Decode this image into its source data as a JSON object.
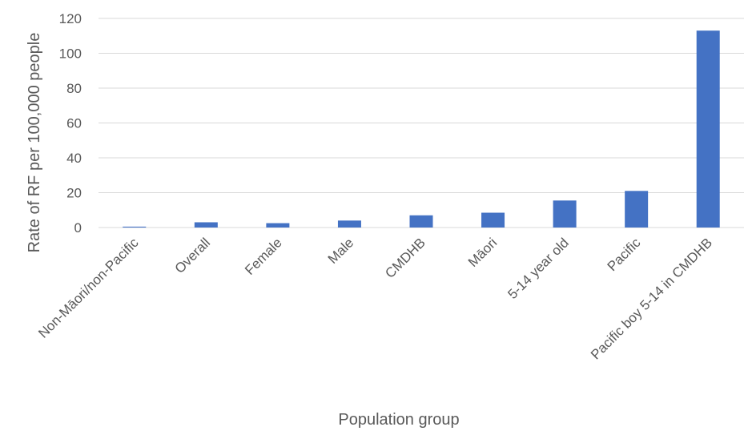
{
  "chart_data": {
    "type": "bar",
    "categories": [
      "Non-Māori/non-Pacific",
      "Overall",
      "Female",
      "Male",
      "CMDHB",
      "Māori",
      "5-14 year old",
      "Pacific",
      "Pacific boy 5-14 in CMDHB"
    ],
    "series": [
      {
        "values": [
          0.5,
          3.0,
          2.5,
          4.0,
          7.0,
          8.5,
          15.5,
          21.0,
          113.0
        ]
      }
    ],
    "title": "",
    "xlabel": "Population group",
    "ylabel": "Rate of RF per 100,000 people",
    "ylim": [
      0,
      120
    ],
    "yticks": [
      0,
      20,
      40,
      60,
      80,
      100,
      120
    ],
    "grid": true,
    "legend": "none",
    "bar_color": "#4472c4"
  }
}
